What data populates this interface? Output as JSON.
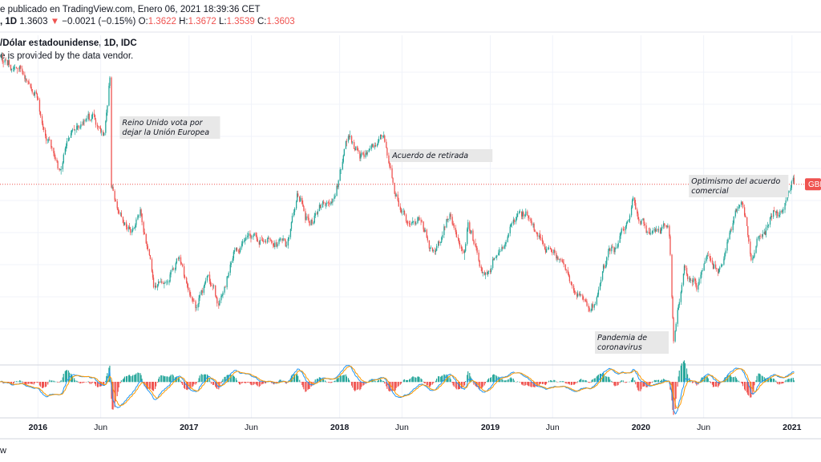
{
  "header": {
    "line1": "e publicado en TradingView.com, Enero 06, 2021 18:39:36 CET",
    "interval": ", 1D",
    "last": "1.3603",
    "change": "−0.0021 (−0.15%)",
    "o_key": "O:",
    "o_val": "1.3622",
    "h_key": "H:",
    "h_val": "1.3672",
    "l_key": "L:",
    "l_val": "1.3539",
    "c_key": "C:",
    "c_val": "1.3603",
    "down_color": "#ef5350"
  },
  "symbol_title": "/Dólar estadounidense, 1D, IDC",
  "vendor_note": "e is provided by the data vendor.",
  "footer": "w",
  "price_label": "GBP",
  "chart_data": {
    "type": "candlestick",
    "instrument": "GBP/USD",
    "interval": "1D",
    "x_ticks": [
      "2016",
      "Jun",
      "2017",
      "Jun",
      "2018",
      "Jun",
      "2019",
      "Jun",
      "2020",
      "Jun",
      "2021"
    ],
    "x_tick_dates": [
      "2016-01-01",
      "2016-06-01",
      "2017-01-01",
      "2017-06-01",
      "2018-01-01",
      "2018-06-01",
      "2019-01-01",
      "2019-06-01",
      "2020-01-01",
      "2020-06-01",
      "2021-01-01"
    ],
    "x_range": [
      "2015-10-01",
      "2021-01-15"
    ],
    "y_range": [
      1.14,
      1.52
    ],
    "current_price": 1.3603,
    "path": [
      [
        "2015-10-01",
        1.52
      ],
      [
        "2015-11-15",
        1.5
      ],
      [
        "2016-01-01",
        1.47
      ],
      [
        "2016-01-20",
        1.42
      ],
      [
        "2016-02-25",
        1.38
      ],
      [
        "2016-03-20",
        1.43
      ],
      [
        "2016-04-20",
        1.43
      ],
      [
        "2016-05-15",
        1.45
      ],
      [
        "2016-06-10",
        1.42
      ],
      [
        "2016-06-23",
        1.49
      ],
      [
        "2016-06-24",
        1.36
      ],
      [
        "2016-07-15",
        1.32
      ],
      [
        "2016-08-15",
        1.3
      ],
      [
        "2016-09-05",
        1.33
      ],
      [
        "2016-10-07",
        1.24
      ],
      [
        "2016-11-05",
        1.24
      ],
      [
        "2016-12-05",
        1.27
      ],
      [
        "2017-01-16",
        1.2
      ],
      [
        "2017-02-15",
        1.25
      ],
      [
        "2017-03-14",
        1.21
      ],
      [
        "2017-04-20",
        1.28
      ],
      [
        "2017-06-05",
        1.29
      ],
      [
        "2017-07-15",
        1.3
      ],
      [
        "2017-08-25",
        1.28
      ],
      [
        "2017-09-20",
        1.35
      ],
      [
        "2017-10-20",
        1.31
      ],
      [
        "2017-11-20",
        1.33
      ],
      [
        "2017-12-20",
        1.34
      ],
      [
        "2018-01-25",
        1.42
      ],
      [
        "2018-02-20",
        1.39
      ],
      [
        "2018-03-15",
        1.4
      ],
      [
        "2018-04-17",
        1.43
      ],
      [
        "2018-05-20",
        1.34
      ],
      [
        "2018-06-20",
        1.31
      ],
      [
        "2018-07-15",
        1.32
      ],
      [
        "2018-08-15",
        1.27
      ],
      [
        "2018-09-25",
        1.32
      ],
      [
        "2018-10-30",
        1.27
      ],
      [
        "2018-11-08",
        1.31
      ],
      [
        "2018-12-15",
        1.25
      ],
      [
        "2019-01-03",
        1.26
      ],
      [
        "2019-02-05",
        1.29
      ],
      [
        "2019-03-13",
        1.33
      ],
      [
        "2019-04-15",
        1.31
      ],
      [
        "2019-05-15",
        1.28
      ],
      [
        "2019-06-20",
        1.27
      ],
      [
        "2019-08-12",
        1.21
      ],
      [
        "2019-09-03",
        1.2
      ],
      [
        "2019-10-15",
        1.27
      ],
      [
        "2019-11-15",
        1.29
      ],
      [
        "2019-12-13",
        1.34
      ],
      [
        "2020-01-15",
        1.3
      ],
      [
        "2020-02-15",
        1.3
      ],
      [
        "2020-03-09",
        1.31
      ],
      [
        "2020-03-20",
        1.16
      ],
      [
        "2020-04-15",
        1.25
      ],
      [
        "2020-05-15",
        1.23
      ],
      [
        "2020-06-10",
        1.27
      ],
      [
        "2020-07-05",
        1.25
      ],
      [
        "2020-08-15",
        1.32
      ],
      [
        "2020-09-01",
        1.34
      ],
      [
        "2020-09-25",
        1.27
      ],
      [
        "2020-10-20",
        1.3
      ],
      [
        "2020-11-20",
        1.33
      ],
      [
        "2020-12-10",
        1.33
      ],
      [
        "2021-01-04",
        1.37
      ],
      [
        "2021-01-06",
        1.3603
      ]
    ],
    "annotations": [
      {
        "date": "2016-06-24",
        "price": 1.47,
        "lines": [
          "Reino Unido vota por",
          "dejar la Unión  Europea"
        ]
      },
      {
        "date": "2018-04-17",
        "price": 1.43,
        "lines": [
          "Acuerdo de retirada"
        ]
      },
      {
        "date": "2020-03-20",
        "price": 1.17,
        "lines": [
          "Pandemia de",
          "coronavirus"
        ]
      },
      {
        "date": "2020-12-31",
        "price": 1.37,
        "lines": [
          "Optimismo del acuerdo",
          "comercial"
        ]
      }
    ],
    "indicator": {
      "type": "macd",
      "macd_color": "#2196f3",
      "signal_color": "#ff9800",
      "hist_up_color": "#26a69a",
      "hist_down_color": "#ef5350",
      "grid": false
    },
    "colors": {
      "up": "#26a69a",
      "down": "#ef5350",
      "price_line": "#ef5350",
      "grid": "#f0f3fa"
    },
    "grid": true
  }
}
